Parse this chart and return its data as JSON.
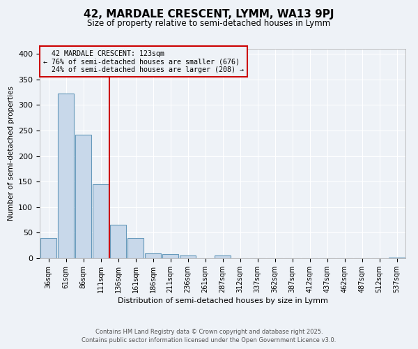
{
  "title": "42, MARDALE CRESCENT, LYMM, WA13 9PJ",
  "subtitle": "Size of property relative to semi-detached houses in Lymm",
  "xlabel": "Distribution of semi-detached houses by size in Lymm",
  "ylabel": "Number of semi-detached properties",
  "categories": [
    "36sqm",
    "61sqm",
    "86sqm",
    "111sqm",
    "136sqm",
    "161sqm",
    "186sqm",
    "211sqm",
    "236sqm",
    "261sqm",
    "287sqm",
    "312sqm",
    "337sqm",
    "362sqm",
    "387sqm",
    "412sqm",
    "437sqm",
    "462sqm",
    "487sqm",
    "512sqm",
    "537sqm"
  ],
  "values": [
    40,
    323,
    242,
    145,
    65,
    40,
    10,
    8,
    5,
    0,
    6,
    0,
    0,
    0,
    0,
    0,
    0,
    0,
    0,
    0,
    2
  ],
  "bar_color": "#c8d8ea",
  "bar_edge_color": "#6699bb",
  "property_line_label": "42 MARDALE CRESCENT: 123sqm",
  "smaller_pct": "76%",
  "smaller_count": 676,
  "larger_pct": "24%",
  "larger_count": 208,
  "line_color": "#cc0000",
  "ylim": [
    0,
    410
  ],
  "yticks": [
    0,
    50,
    100,
    150,
    200,
    250,
    300,
    350,
    400
  ],
  "background_color": "#eef2f7",
  "grid_color": "#ffffff",
  "footer1": "Contains HM Land Registry data © Crown copyright and database right 2025.",
  "footer2": "Contains public sector information licensed under the Open Government Licence v3.0."
}
